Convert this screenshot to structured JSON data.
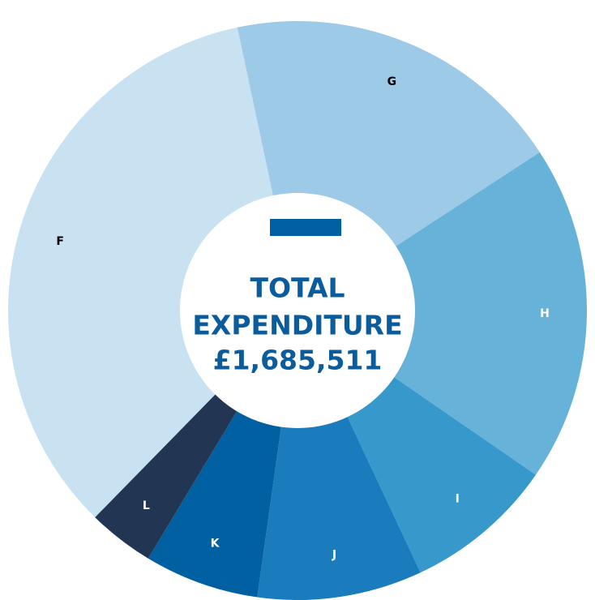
{
  "chart_data": {
    "type": "donut",
    "categories": [
      "F",
      "G",
      "H",
      "I",
      "J",
      "K",
      "L"
    ],
    "values": [
      34.3,
      19.1,
      18.8,
      8.4,
      9.2,
      6.4,
      3.7
    ],
    "colors": [
      "#c9e2f2",
      "#9dcae6",
      "#67b2d9",
      "#3798cc",
      "#1a7bbd",
      "#0160a1",
      "#223553"
    ],
    "label_colors": [
      "#000000",
      "#000000",
      "#ffffff",
      "#ffffff",
      "#ffffff",
      "#ffffff",
      "#ffffff"
    ],
    "start_angle": 224.4,
    "center_text": [
      "TOTAL",
      "EXPENDITURE",
      "£1,685,511"
    ]
  }
}
